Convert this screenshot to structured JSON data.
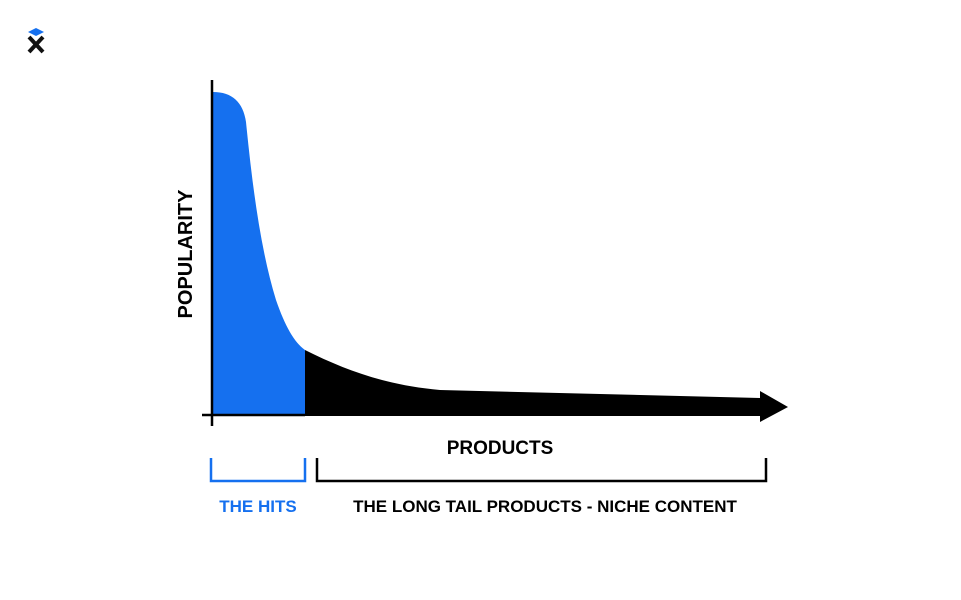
{
  "colors": {
    "hits": "#1570ef",
    "tail": "#000000",
    "axis": "#000000",
    "background": "#ffffff"
  },
  "logo": {
    "icon": "x-logo-icon"
  },
  "diagram": {
    "y_axis_label": "POPULARITY",
    "x_axis_label": "PRODUCTS",
    "hits_label": "THE HITS",
    "tail_label": "THE LONG TAIL PRODUCTS - NICHE CONTENT"
  }
}
